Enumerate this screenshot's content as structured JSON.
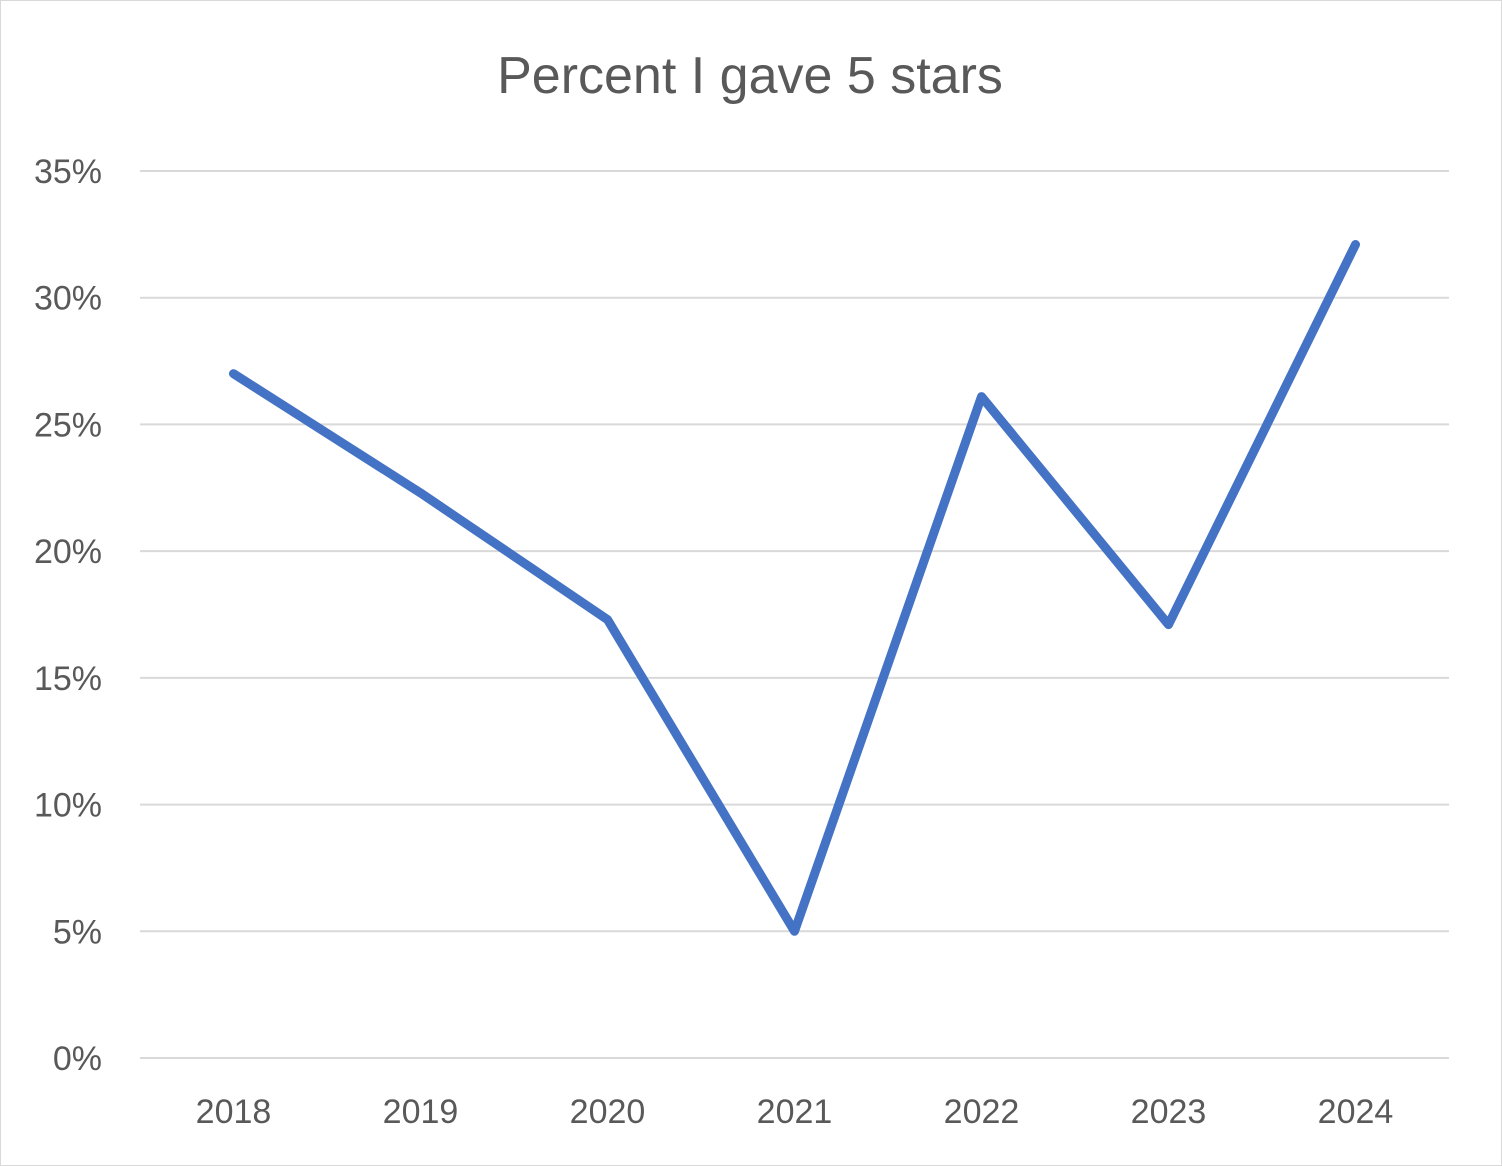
{
  "chart_data": {
    "type": "line",
    "title": "Percent I gave 5 stars",
    "xlabel": "",
    "ylabel": "",
    "categories": [
      "2018",
      "2019",
      "2020",
      "2021",
      "2022",
      "2023",
      "2024"
    ],
    "series": [
      {
        "values": [
          27,
          22.3,
          17.3,
          5,
          26.1,
          17.1,
          32.1
        ]
      }
    ],
    "ylim": [
      0,
      35
    ],
    "yticks": [
      0,
      5,
      10,
      15,
      20,
      25,
      30,
      35
    ],
    "ytick_labels": [
      "0%",
      "5%",
      "10%",
      "15%",
      "20%",
      "25%",
      "30%",
      "35%"
    ],
    "grid": true,
    "legend": "none",
    "line_color": "#4472c4",
    "grid_color": "#d9d9d9",
    "text_color": "#595959"
  }
}
